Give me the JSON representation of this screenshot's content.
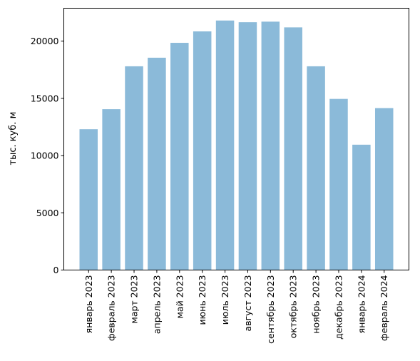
{
  "chart_data": {
    "type": "bar",
    "title": "",
    "xlabel": "",
    "ylabel": "тыс. куб. м",
    "ylim": [
      0,
      22875
    ],
    "yticks": [
      0,
      5000,
      10000,
      15000,
      20000
    ],
    "grid": false,
    "bar_color": "#8bbad9",
    "categories": [
      "январь 2023",
      "февраль 2023",
      "март 2023",
      "апрель 2023",
      "май 2023",
      "июнь 2023",
      "июль 2023",
      "август 2023",
      "сентябрь 2023",
      "октябрь 2023",
      "ноябрь 2023",
      "декабрь 2023",
      "январь 2024",
      "февраль 2024"
    ],
    "values": [
      12300,
      14050,
      17800,
      18550,
      19850,
      20850,
      21800,
      21650,
      21700,
      21200,
      17800,
      14950,
      10950,
      14150
    ]
  }
}
